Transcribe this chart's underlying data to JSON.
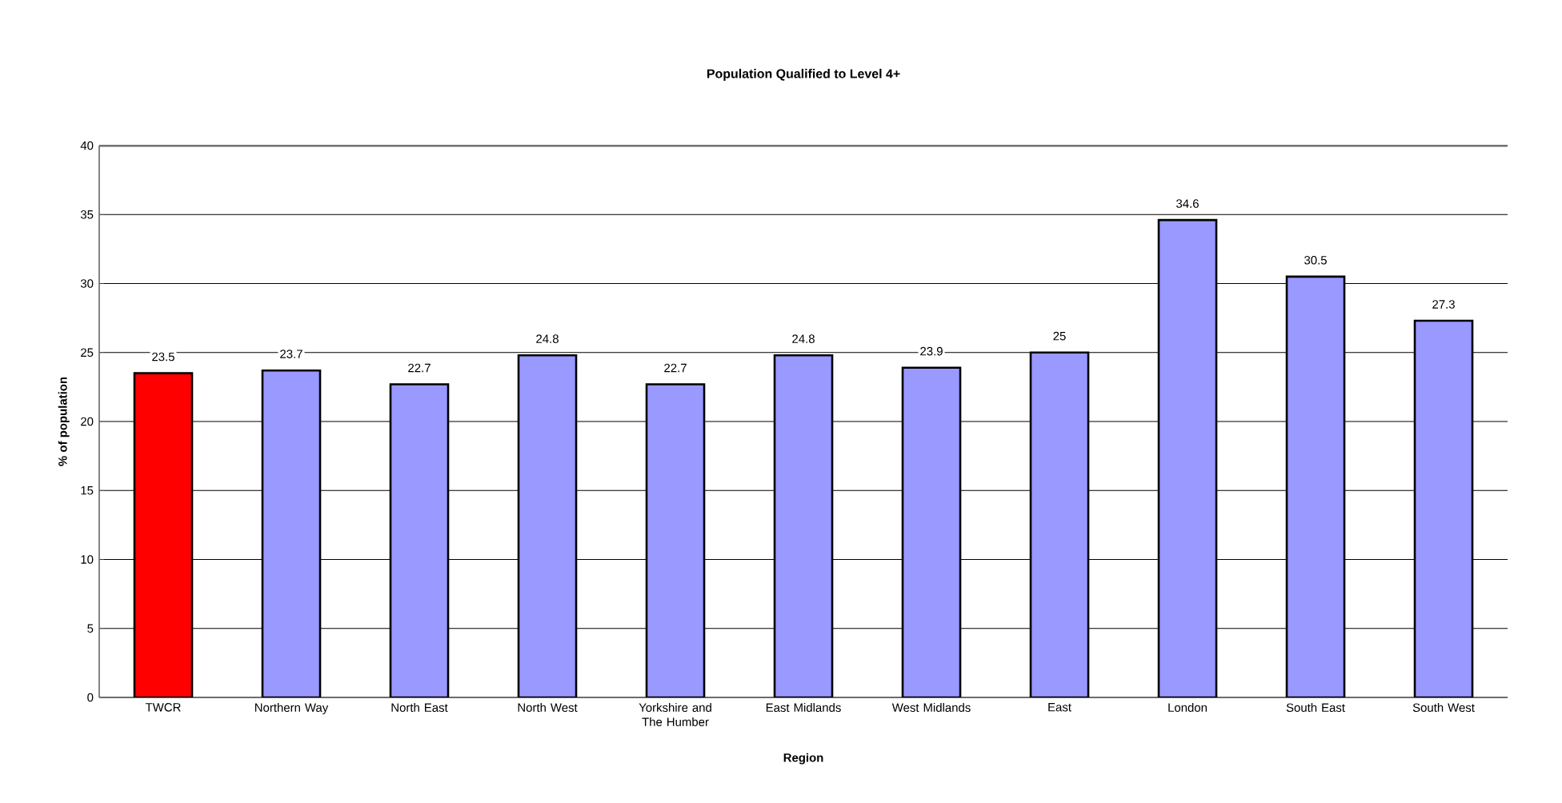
{
  "chart_data": {
    "type": "bar",
    "title": "Population Qualified to Level 4+",
    "xlabel": "Region",
    "ylabel": "% of population",
    "categories": [
      "TWCR",
      "Northern Way",
      "North East",
      "North West",
      "Yorkshire and The Humber",
      "East Midlands",
      "West Midlands",
      "East",
      "London",
      "South East",
      "South West"
    ],
    "values": [
      23.5,
      23.7,
      22.7,
      24.8,
      22.7,
      24.8,
      23.9,
      25,
      34.6,
      30.5,
      27.3
    ],
    "colors": [
      "#ff0000",
      "#9999ff",
      "#9999ff",
      "#9999ff",
      "#9999ff",
      "#9999ff",
      "#9999ff",
      "#9999ff",
      "#9999ff",
      "#9999ff",
      "#9999ff"
    ],
    "ylim": [
      0,
      40
    ],
    "yticks": [
      0,
      5,
      10,
      15,
      20,
      25,
      30,
      35,
      40
    ],
    "grid": "y",
    "data_labels": true
  }
}
